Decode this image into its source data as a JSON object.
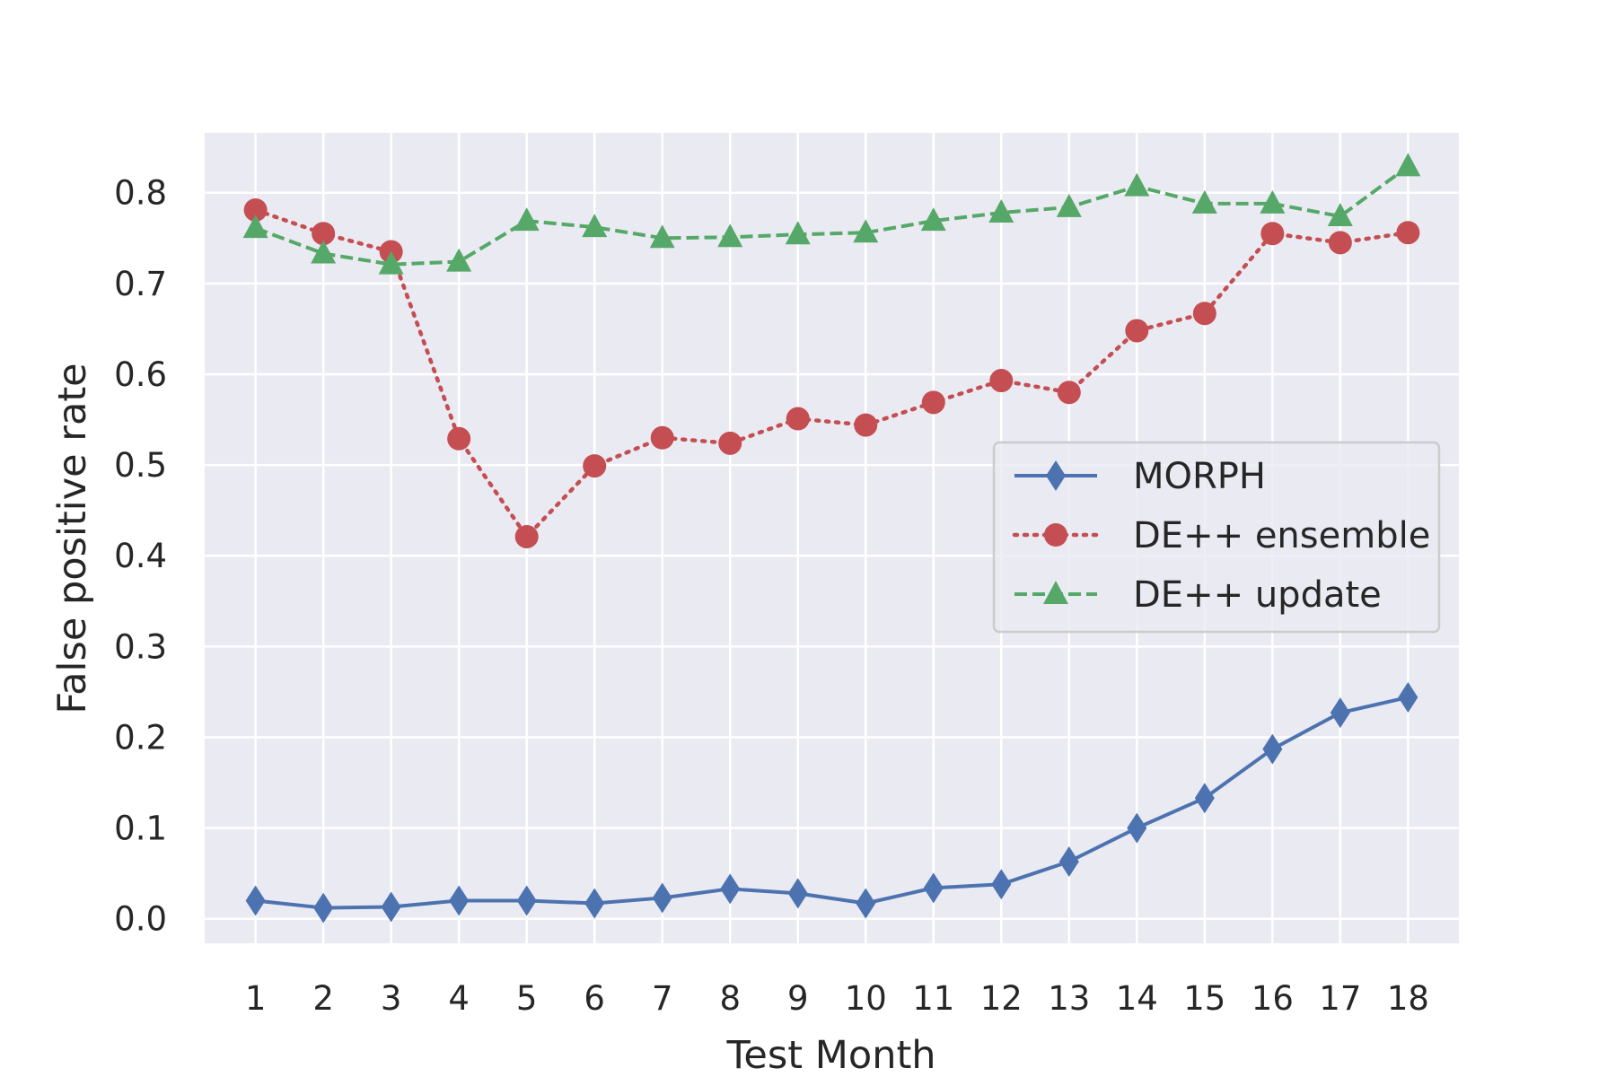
{
  "chart_data": {
    "type": "line",
    "title": "",
    "xlabel": "Test Month",
    "ylabel": "False positive rate",
    "categories": [
      "1",
      "2",
      "3",
      "4",
      "5",
      "6",
      "7",
      "8",
      "9",
      "10",
      "11",
      "12",
      "13",
      "14",
      "15",
      "16",
      "17",
      "18"
    ],
    "x": [
      1,
      2,
      3,
      4,
      5,
      6,
      7,
      8,
      9,
      10,
      11,
      12,
      13,
      14,
      15,
      16,
      17,
      18
    ],
    "xlim": [
      0.25,
      18.75
    ],
    "ylim": [
      -0.027,
      0.866
    ],
    "yticks": [
      0.0,
      0.1,
      0.2,
      0.3,
      0.4,
      0.5,
      0.6,
      0.7,
      0.8
    ],
    "ytick_labels": [
      "0.0",
      "0.1",
      "0.2",
      "0.3",
      "0.4",
      "0.5",
      "0.6",
      "0.7",
      "0.8"
    ],
    "grid": true,
    "legend_position": "center-right",
    "series": [
      {
        "name": "MORPH",
        "color": "#4c72b0",
        "line_style": "solid",
        "marker": "diamond",
        "values": [
          0.02,
          0.012,
          0.013,
          0.02,
          0.02,
          0.017,
          0.023,
          0.033,
          0.028,
          0.017,
          0.034,
          0.038,
          0.063,
          0.1,
          0.133,
          0.187,
          0.227,
          0.244
        ]
      },
      {
        "name": "DE++ ensemble",
        "color": "#c44e52",
        "line_style": "dotted",
        "marker": "circle",
        "values": [
          0.781,
          0.755,
          0.735,
          0.529,
          0.421,
          0.499,
          0.53,
          0.524,
          0.551,
          0.544,
          0.569,
          0.593,
          0.58,
          0.648,
          0.667,
          0.755,
          0.745,
          0.756
        ]
      },
      {
        "name": "DE++ update",
        "color": "#55a868",
        "line_style": "dashed",
        "marker": "triangle",
        "values": [
          0.761,
          0.733,
          0.721,
          0.724,
          0.769,
          0.762,
          0.75,
          0.751,
          0.754,
          0.756,
          0.769,
          0.778,
          0.784,
          0.807,
          0.788,
          0.788,
          0.774,
          0.829
        ]
      }
    ]
  }
}
